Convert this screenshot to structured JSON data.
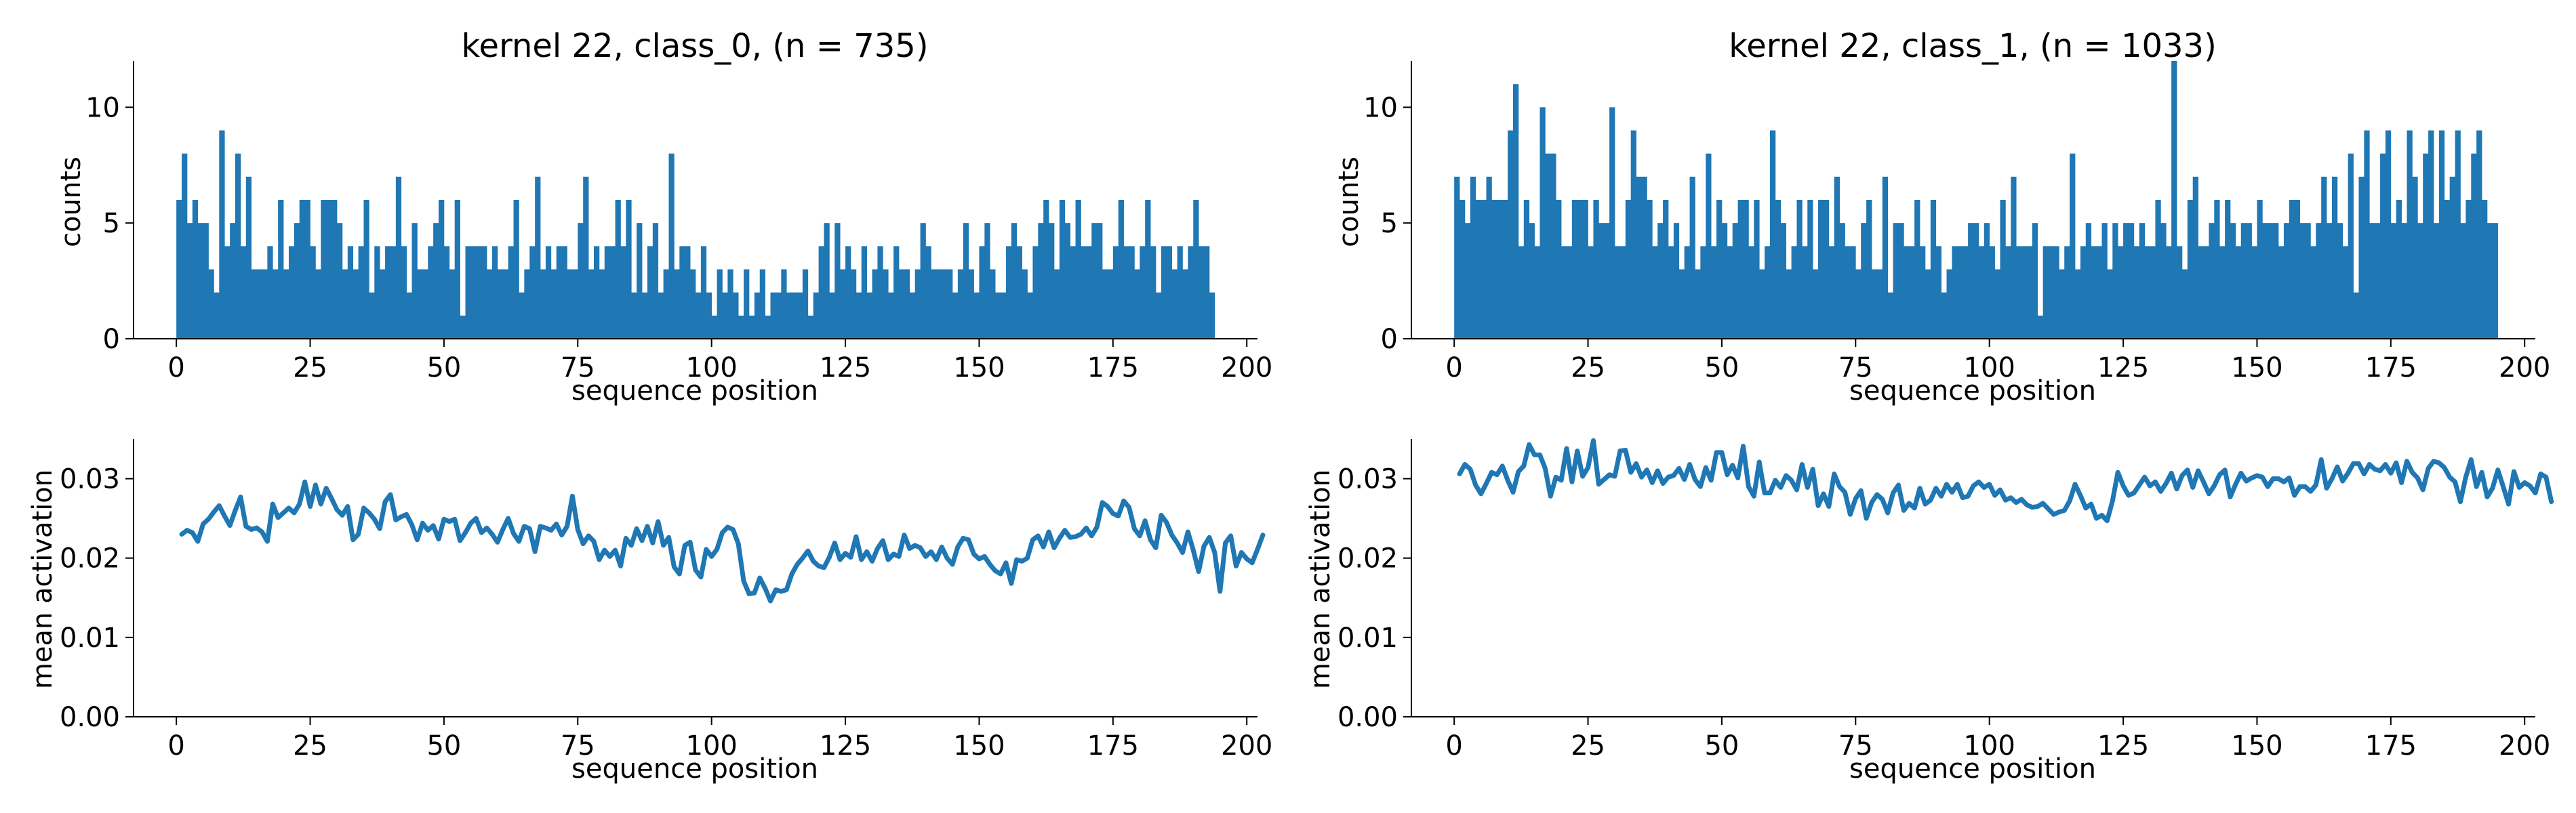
{
  "figure": {
    "panels": [
      {
        "title": "kernel 22, class_0, (n = 735)",
        "xlabel": "sequence position",
        "ylabel": "counts"
      },
      {
        "title": "kernel 22, class_1, (n = 1033)",
        "xlabel": "sequence position",
        "ylabel": "counts"
      },
      {
        "title": "",
        "xlabel": "sequence position",
        "ylabel": "mean activation"
      },
      {
        "title": "",
        "xlabel": "sequence position",
        "ylabel": "mean activation"
      }
    ]
  },
  "chart_data": [
    {
      "type": "bar",
      "title": "kernel 22, class_0, (n = 735)",
      "xlabel": "sequence position",
      "ylabel": "counts",
      "xlim": [
        -8,
        202
      ],
      "ylim": [
        0,
        12
      ],
      "xticks": [
        0,
        25,
        50,
        75,
        100,
        125,
        150,
        175,
        200
      ],
      "yticks": [
        0,
        5,
        10
      ],
      "color": "#1f77b4",
      "x_start": 0,
      "values": [
        6,
        8,
        5,
        6,
        5,
        5,
        3,
        2,
        9,
        4,
        5,
        8,
        4,
        7,
        3,
        3,
        3,
        4,
        3,
        6,
        3,
        4,
        5,
        6,
        6,
        4,
        3,
        6,
        6,
        6,
        5,
        3,
        4,
        3,
        4,
        6,
        2,
        4,
        3,
        4,
        4,
        7,
        4,
        2,
        5,
        3,
        3,
        4,
        5,
        6,
        4,
        3,
        6,
        1,
        4,
        4,
        4,
        4,
        3,
        4,
        3,
        3,
        4,
        6,
        2,
        3,
        4,
        7,
        3,
        4,
        3,
        4,
        4,
        3,
        3,
        5,
        7,
        3,
        4,
        3,
        4,
        4,
        6,
        4,
        6,
        2,
        5,
        2,
        4,
        5,
        2,
        3,
        8,
        3,
        4,
        4,
        3,
        2,
        4,
        2,
        1,
        3,
        2,
        3,
        2,
        1,
        3,
        1,
        2,
        3,
        1,
        2,
        2,
        3,
        2,
        2,
        2,
        3,
        1,
        2,
        4,
        5,
        2,
        5,
        3,
        4,
        3,
        2,
        4,
        2,
        3,
        4,
        3,
        2,
        4,
        3,
        3,
        2,
        3,
        5,
        4,
        3,
        3,
        3,
        3,
        2,
        3,
        5,
        3,
        2,
        4,
        5,
        3,
        2,
        2,
        4,
        5,
        4,
        3,
        2,
        4,
        5,
        6,
        5,
        3,
        6,
        5,
        4,
        6,
        4,
        4,
        5,
        5,
        3,
        3,
        4,
        6,
        4,
        4,
        3,
        4,
        6,
        4,
        2,
        4,
        4,
        3,
        4,
        3,
        4,
        6,
        4,
        4,
        2
      ]
    },
    {
      "type": "bar",
      "title": "kernel 22, class_1, (n = 1033)",
      "xlabel": "sequence position",
      "ylabel": "counts",
      "xlim": [
        -8,
        202
      ],
      "ylim": [
        0,
        12
      ],
      "xticks": [
        0,
        25,
        50,
        75,
        100,
        125,
        150,
        175,
        200
      ],
      "yticks": [
        0,
        5,
        10
      ],
      "color": "#1f77b4",
      "x_start": 0,
      "values": [
        7,
        6,
        5,
        7,
        6,
        6,
        7,
        6,
        6,
        6,
        9,
        11,
        4,
        6,
        5,
        4,
        10,
        8,
        8,
        6,
        4,
        4,
        6,
        6,
        6,
        4,
        6,
        5,
        5,
        10,
        4,
        4,
        6,
        9,
        7,
        7,
        6,
        4,
        5,
        6,
        4,
        5,
        3,
        4,
        7,
        3,
        4,
        8,
        4,
        6,
        5,
        4,
        5,
        6,
        6,
        4,
        6,
        3,
        4,
        9,
        6,
        5,
        3,
        4,
        6,
        4,
        6,
        3,
        6,
        6,
        4,
        7,
        5,
        4,
        4,
        3,
        5,
        6,
        3,
        3,
        7,
        2,
        5,
        5,
        4,
        4,
        6,
        4,
        3,
        6,
        4,
        2,
        3,
        4,
        4,
        4,
        5,
        5,
        4,
        5,
        4,
        3,
        6,
        4,
        7,
        4,
        4,
        4,
        5,
        1,
        4,
        4,
        4,
        3,
        4,
        8,
        3,
        4,
        5,
        4,
        4,
        5,
        3,
        5,
        4,
        5,
        5,
        4,
        5,
        4,
        4,
        6,
        5,
        4,
        12,
        4,
        3,
        6,
        7,
        4,
        4,
        5,
        6,
        4,
        6,
        5,
        4,
        5,
        5,
        4,
        6,
        5,
        5,
        5,
        4,
        5,
        6,
        6,
        5,
        5,
        4,
        5,
        7,
        5,
        7,
        5,
        4,
        8,
        2,
        7,
        9,
        5,
        5,
        8,
        9,
        5,
        6,
        5,
        9,
        7,
        5,
        8,
        9,
        5,
        9,
        6,
        7,
        9,
        5,
        6,
        8,
        9,
        6,
        5,
        5
      ]
    },
    {
      "type": "line",
      "title": "",
      "xlabel": "sequence position",
      "ylabel": "mean activation",
      "xlim": [
        -8,
        202
      ],
      "ylim": [
        0,
        0.035
      ],
      "xticks": [
        0,
        25,
        50,
        75,
        100,
        125,
        150,
        175,
        200
      ],
      "yticks": [
        0.0,
        0.01,
        0.02,
        0.03
      ],
      "ytick_labels": [
        "0.00",
        "0.01",
        "0.02",
        "0.03"
      ],
      "color": "#1f77b4",
      "x_start": 1,
      "values": [
        0.023,
        0.0235,
        0.0232,
        0.0221,
        0.0243,
        0.0249,
        0.0258,
        0.0266,
        0.0253,
        0.0241,
        0.026,
        0.0277,
        0.024,
        0.0236,
        0.0238,
        0.0233,
        0.0221,
        0.0268,
        0.0251,
        0.0257,
        0.0263,
        0.0257,
        0.0268,
        0.0296,
        0.0265,
        0.0292,
        0.0268,
        0.0288,
        0.0275,
        0.0261,
        0.0254,
        0.0265,
        0.0223,
        0.023,
        0.0263,
        0.0257,
        0.0249,
        0.0237,
        0.0271,
        0.028,
        0.0248,
        0.0252,
        0.0255,
        0.0242,
        0.0223,
        0.0244,
        0.0235,
        0.0241,
        0.0224,
        0.0249,
        0.0246,
        0.0249,
        0.0222,
        0.0232,
        0.0244,
        0.025,
        0.0232,
        0.0238,
        0.023,
        0.022,
        0.0236,
        0.025,
        0.0231,
        0.0221,
        0.024,
        0.0237,
        0.0208,
        0.024,
        0.0238,
        0.0235,
        0.0243,
        0.0229,
        0.024,
        0.0278,
        0.0236,
        0.0218,
        0.0228,
        0.0221,
        0.0198,
        0.021,
        0.0202,
        0.021,
        0.019,
        0.0225,
        0.0216,
        0.0237,
        0.0222,
        0.024,
        0.0219,
        0.0246,
        0.0216,
        0.0226,
        0.0189,
        0.018,
        0.0216,
        0.022,
        0.0185,
        0.0176,
        0.0211,
        0.0202,
        0.0211,
        0.0232,
        0.0239,
        0.0236,
        0.0218,
        0.0171,
        0.0155,
        0.0156,
        0.0175,
        0.0162,
        0.0146,
        0.016,
        0.0158,
        0.016,
        0.018,
        0.0192,
        0.02,
        0.0209,
        0.0196,
        0.019,
        0.0188,
        0.0201,
        0.0219,
        0.0198,
        0.0206,
        0.0201,
        0.0227,
        0.0198,
        0.0208,
        0.0196,
        0.0212,
        0.0222,
        0.0198,
        0.0205,
        0.0202,
        0.0229,
        0.0212,
        0.0216,
        0.0213,
        0.0202,
        0.0208,
        0.0198,
        0.0214,
        0.02,
        0.0192,
        0.0214,
        0.0225,
        0.0223,
        0.0205,
        0.0199,
        0.0202,
        0.0192,
        0.0184,
        0.018,
        0.0194,
        0.0168,
        0.0198,
        0.0196,
        0.02,
        0.0223,
        0.0228,
        0.0214,
        0.0233,
        0.0213,
        0.0225,
        0.0235,
        0.0226,
        0.0227,
        0.023,
        0.0238,
        0.0228,
        0.0239,
        0.027,
        0.0265,
        0.0256,
        0.0253,
        0.0272,
        0.0264,
        0.0237,
        0.0228,
        0.0247,
        0.0223,
        0.0213,
        0.0254,
        0.0245,
        0.0229,
        0.0219,
        0.0207,
        0.0233,
        0.021,
        0.0183,
        0.0215,
        0.0226,
        0.0207,
        0.0158,
        0.0219,
        0.0228,
        0.019,
        0.0207,
        0.0199,
        0.0194,
        0.0211,
        0.0229
      ]
    },
    {
      "type": "line",
      "title": "",
      "xlabel": "sequence position",
      "ylabel": "mean activation",
      "xlim": [
        -8,
        202
      ],
      "ylim": [
        0,
        0.035
      ],
      "xticks": [
        0,
        25,
        50,
        75,
        100,
        125,
        150,
        175,
        200
      ],
      "yticks": [
        0.0,
        0.01,
        0.02,
        0.03
      ],
      "ytick_labels": [
        "0.00",
        "0.01",
        "0.02",
        "0.03"
      ],
      "color": "#1f77b4",
      "x_start": 1,
      "values": [
        0.0306,
        0.0318,
        0.0312,
        0.0292,
        0.0281,
        0.0294,
        0.0308,
        0.0305,
        0.0316,
        0.0298,
        0.0283,
        0.0309,
        0.0316,
        0.0343,
        0.033,
        0.033,
        0.0313,
        0.0278,
        0.0302,
        0.0298,
        0.0338,
        0.0296,
        0.0335,
        0.0303,
        0.0314,
        0.0348,
        0.0293,
        0.0299,
        0.0305,
        0.0303,
        0.0335,
        0.0336,
        0.0308,
        0.0319,
        0.0302,
        0.0311,
        0.0295,
        0.031,
        0.0294,
        0.0302,
        0.0304,
        0.0313,
        0.0299,
        0.0318,
        0.0299,
        0.029,
        0.0314,
        0.0298,
        0.0333,
        0.0333,
        0.0305,
        0.0317,
        0.0301,
        0.0341,
        0.029,
        0.0278,
        0.0321,
        0.0282,
        0.0282,
        0.0298,
        0.0289,
        0.0304,
        0.0298,
        0.0286,
        0.0318,
        0.0289,
        0.0312,
        0.0266,
        0.0281,
        0.0265,
        0.0306,
        0.029,
        0.0283,
        0.0255,
        0.0275,
        0.0285,
        0.025,
        0.027,
        0.028,
        0.0274,
        0.0257,
        0.0282,
        0.0292,
        0.026,
        0.0269,
        0.0263,
        0.0288,
        0.0268,
        0.0273,
        0.0288,
        0.0278,
        0.0293,
        0.0283,
        0.0293,
        0.0276,
        0.0278,
        0.0291,
        0.0296,
        0.0289,
        0.0293,
        0.0279,
        0.0286,
        0.0273,
        0.0276,
        0.027,
        0.0274,
        0.0267,
        0.0264,
        0.0265,
        0.0269,
        0.0262,
        0.0255,
        0.0258,
        0.026,
        0.0272,
        0.0293,
        0.0279,
        0.0263,
        0.0268,
        0.025,
        0.0254,
        0.0247,
        0.0272,
        0.0308,
        0.0291,
        0.0279,
        0.0282,
        0.0292,
        0.0302,
        0.0291,
        0.0296,
        0.0284,
        0.0294,
        0.0307,
        0.0287,
        0.0304,
        0.0311,
        0.0289,
        0.031,
        0.0296,
        0.0281,
        0.0291,
        0.0305,
        0.0311,
        0.0277,
        0.0293,
        0.0307,
        0.0297,
        0.0301,
        0.0304,
        0.0302,
        0.029,
        0.03,
        0.03,
        0.0296,
        0.0301,
        0.0279,
        0.029,
        0.029,
        0.0284,
        0.0292,
        0.0324,
        0.0288,
        0.03,
        0.0315,
        0.0297,
        0.0307,
        0.0319,
        0.0319,
        0.0306,
        0.0318,
        0.0312,
        0.031,
        0.0318,
        0.0307,
        0.032,
        0.0295,
        0.0322,
        0.0308,
        0.0301,
        0.0286,
        0.0313,
        0.0322,
        0.032,
        0.0314,
        0.0302,
        0.0296,
        0.0271,
        0.0302,
        0.0324,
        0.029,
        0.0308,
        0.0277,
        0.0288,
        0.0311,
        0.029,
        0.0268,
        0.0309,
        0.0289,
        0.0295,
        0.0291,
        0.0282,
        0.0306,
        0.0302,
        0.0271
      ]
    }
  ]
}
